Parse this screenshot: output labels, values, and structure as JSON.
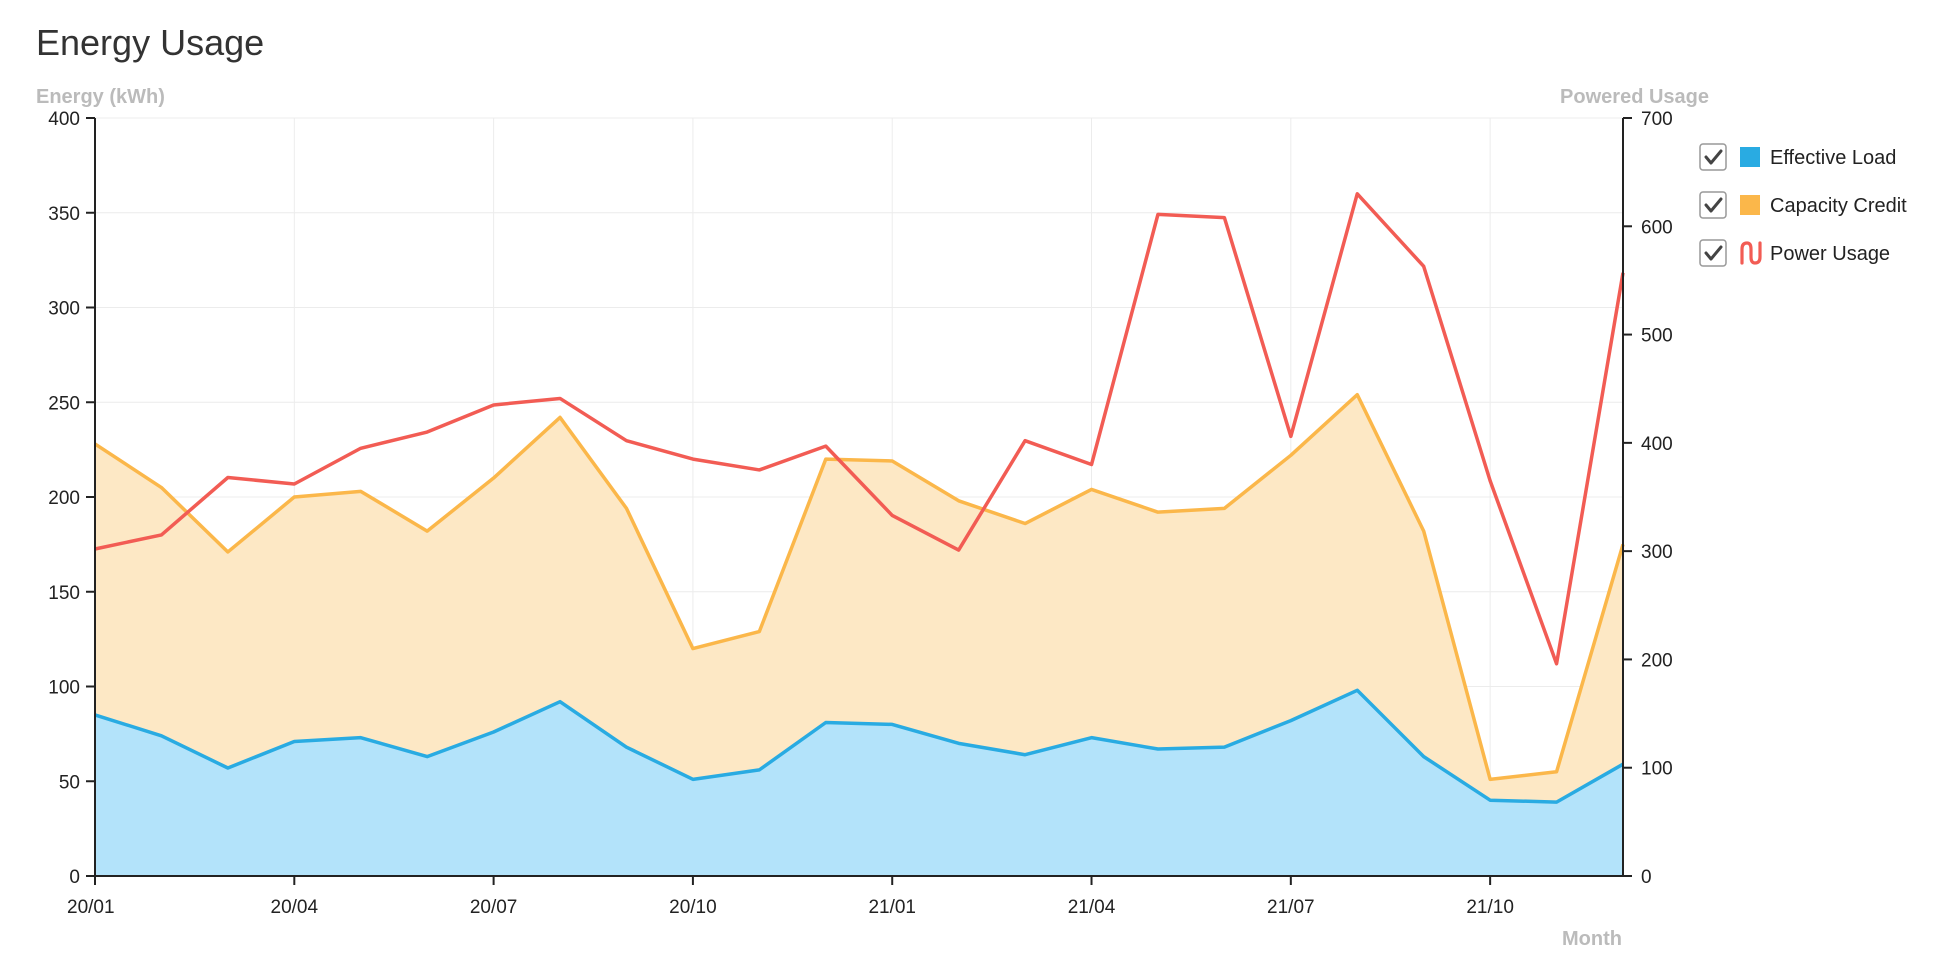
{
  "chart_data": {
    "type": "area",
    "title": "Energy Usage",
    "ylabel": "Energy (kWh)",
    "y2label": "Powered Usage",
    "xlabel": "Month",
    "x": [
      "20/01",
      "20/02",
      "20/03",
      "20/04",
      "20/05",
      "20/06",
      "20/07",
      "20/08",
      "20/09",
      "20/10",
      "20/11",
      "20/12",
      "21/01",
      "21/02",
      "21/03",
      "21/04",
      "21/05",
      "21/06",
      "21/07",
      "21/08",
      "21/09",
      "21/10",
      "21/11",
      "21/12"
    ],
    "x_tick_labels": [
      "20/01",
      "20/04",
      "20/07",
      "20/10",
      "21/01",
      "21/04",
      "21/07",
      "21/10"
    ],
    "ylim": [
      0,
      400
    ],
    "yticks": [
      0,
      50,
      100,
      150,
      200,
      250,
      300,
      350,
      400
    ],
    "y2lim": [
      0,
      700
    ],
    "y2ticks": [
      0,
      100,
      200,
      300,
      400,
      500,
      600,
      700
    ],
    "grid": true,
    "legend_position": "right",
    "series": [
      {
        "name": "Effective Load",
        "axis": "left",
        "kind": "area",
        "color": "#29abe2",
        "fill": "#b3e3fa",
        "values": [
          85,
          74,
          57,
          71,
          73,
          63,
          76,
          92,
          68,
          51,
          56,
          81,
          80,
          70,
          64,
          73,
          67,
          68,
          82,
          98,
          63,
          40,
          39,
          59
        ]
      },
      {
        "name": "Capacity Credit",
        "axis": "left",
        "kind": "area",
        "color": "#fbb74a",
        "fill": "#fde8c5",
        "values": [
          228,
          205,
          171,
          200,
          203,
          182,
          210,
          242,
          194,
          120,
          129,
          220,
          219,
          198,
          186,
          204,
          192,
          194,
          222,
          254,
          182,
          51,
          55,
          175
        ]
      },
      {
        "name": "Power Usage",
        "axis": "right",
        "kind": "line",
        "color": "#f25c54",
        "values": [
          302,
          315,
          368,
          362,
          395,
          410,
          435,
          441,
          402,
          385,
          375,
          397,
          333,
          301,
          402,
          380,
          611,
          608,
          406,
          630,
          563,
          365,
          196,
          557
        ]
      }
    ]
  },
  "legend": {
    "checkbox_icon": "checkbox-checked-icon",
    "power_icon": "wave-line-icon"
  }
}
